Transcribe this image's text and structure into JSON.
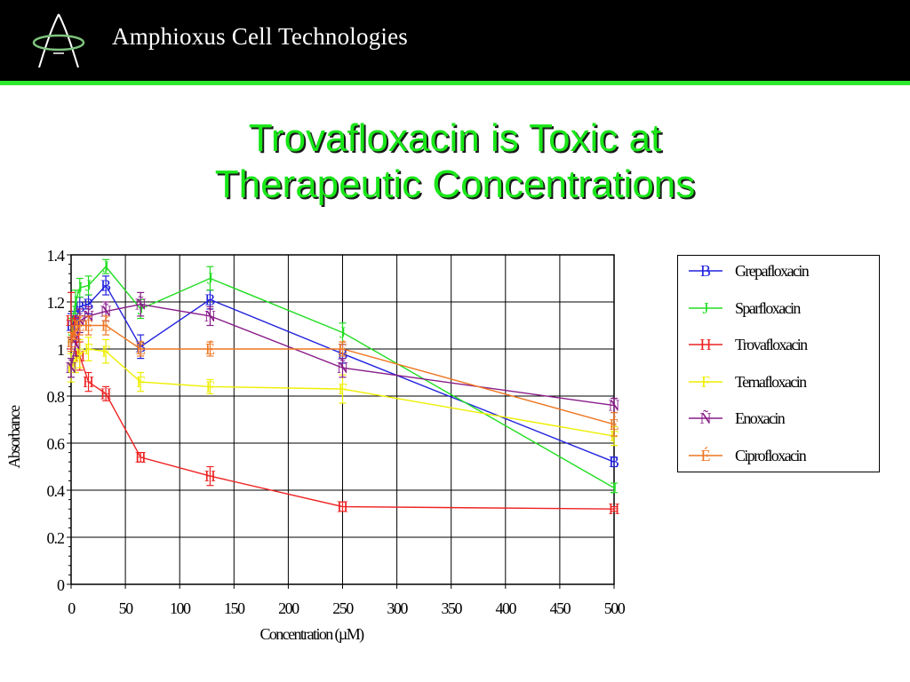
{
  "header": {
    "company_name": "Amphioxus Cell Technologies",
    "logo_icon": "amphioxus-logo-icon",
    "background_color": "#000000",
    "accent_color": "#2ee82e"
  },
  "slide": {
    "title_line1": "Trovafloxacin is Toxic at",
    "title_line2": "Therapeutic Concentrations",
    "title_color": "#19e619"
  },
  "chart_data": {
    "type": "line",
    "xlabel": "Concentration (µM)",
    "ylabel": "Absorbance",
    "xlim": [
      0,
      500
    ],
    "ylim": [
      0,
      1.4
    ],
    "x_ticks": [
      "0",
      "50",
      "100",
      "150",
      "200",
      "250",
      "300",
      "350",
      "400",
      "450",
      "500"
    ],
    "y_ticks": [
      "0",
      "0.2",
      "0.4",
      "0.6",
      "0.8",
      "1",
      "1.2",
      "1.4"
    ],
    "grid": true,
    "legend_position": "right",
    "x": [
      0,
      4,
      8,
      16,
      32,
      64,
      128,
      250,
      500
    ],
    "series": [
      {
        "name": "Grepafloxacin",
        "marker": "B",
        "color": "#2222dd",
        "values": [
          1.1,
          1.12,
          1.18,
          1.19,
          1.27,
          1.01,
          1.21,
          0.98,
          0.52
        ],
        "errors": [
          0.05,
          0.04,
          0.04,
          0.04,
          0.04,
          0.05,
          0.04,
          0.04,
          0.02
        ]
      },
      {
        "name": "Sparfloxacin",
        "marker": "J",
        "color": "#22dd22",
        "values": [
          1.08,
          1.2,
          1.26,
          1.27,
          1.35,
          1.17,
          1.3,
          1.07,
          0.41
        ],
        "errors": [
          0.05,
          0.05,
          0.04,
          0.04,
          0.03,
          0.04,
          0.05,
          0.04,
          0.02
        ]
      },
      {
        "name": "Trovafloxacin",
        "marker": "H",
        "color": "#ee2222",
        "values": [
          1.12,
          1.05,
          0.97,
          0.86,
          0.81,
          0.54,
          0.46,
          0.33,
          0.32
        ],
        "errors": [
          0.12,
          0.08,
          0.06,
          0.04,
          0.03,
          0.02,
          0.04,
          0.02,
          0.01
        ]
      },
      {
        "name": "Temafloxacin",
        "marker": "F",
        "color": "#eeee00",
        "values": [
          0.92,
          0.95,
          0.98,
          1.0,
          0.99,
          0.86,
          0.84,
          0.83,
          0.63
        ],
        "errors": [
          0.06,
          0.05,
          0.06,
          0.05,
          0.05,
          0.04,
          0.03,
          0.06,
          0.04
        ]
      },
      {
        "name": "Enoxacin",
        "marker": "Ñ",
        "color": "#881c88",
        "values": [
          0.92,
          1.02,
          1.12,
          1.14,
          1.16,
          1.19,
          1.14,
          0.92,
          0.76
        ],
        "errors": [
          0.04,
          0.05,
          0.05,
          0.04,
          0.04,
          0.05,
          0.04,
          0.04,
          0.03
        ]
      },
      {
        "name": "Ciprofloxacin",
        "marker": "É",
        "color": "#ee7722",
        "values": [
          1.03,
          1.08,
          1.1,
          1.1,
          1.1,
          1.0,
          1.0,
          1.0,
          0.68
        ],
        "errors": [
          0.04,
          0.04,
          0.04,
          0.04,
          0.04,
          0.03,
          0.03,
          0.03,
          0.05
        ]
      }
    ]
  }
}
